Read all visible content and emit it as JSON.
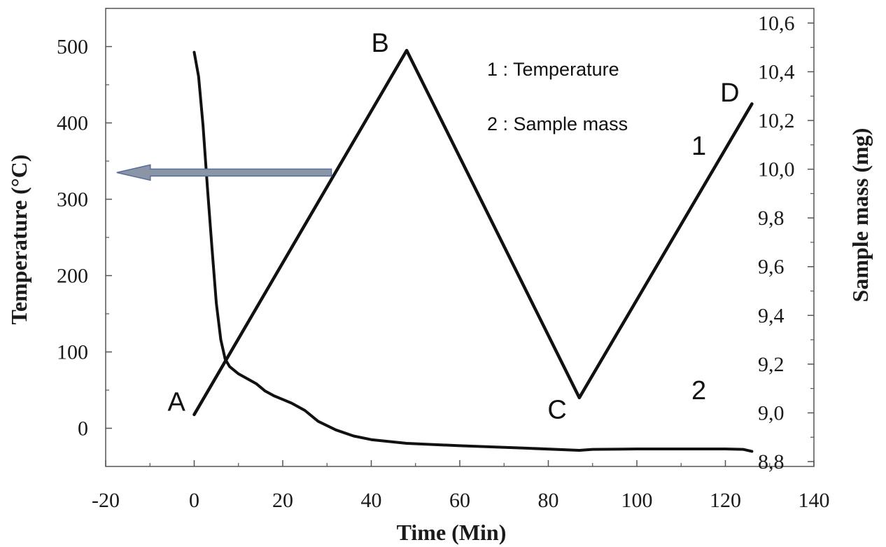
{
  "chart_data": {
    "type": "line",
    "xlabel": "Time (Min)",
    "ylabel_left": "Temperature  (°C)",
    "ylabel_right": "Sample mass (mg)",
    "xlim": [
      -20,
      140
    ],
    "ylim_left": [
      -50,
      550
    ],
    "ylim_right": [
      8.78,
      10.66
    ],
    "x_ticks": [
      "-20",
      "0",
      "20",
      "40",
      "60",
      "80",
      "100",
      "120",
      "140"
    ],
    "x_tick_values": [
      -20,
      0,
      20,
      40,
      60,
      80,
      100,
      120,
      140
    ],
    "y_left_ticks": [
      "0",
      "100",
      "200",
      "300",
      "400",
      "500"
    ],
    "y_left_tick_values": [
      0,
      100,
      200,
      300,
      400,
      500
    ],
    "y_right_ticks": [
      "8,8",
      "9,0",
      "9,2",
      "9,4",
      "9,6",
      "9,8",
      "10,0",
      "10,2",
      "10,4",
      "10,6"
    ],
    "y_right_tick_values": [
      8.8,
      9.0,
      9.2,
      9.4,
      9.6,
      9.8,
      10.0,
      10.2,
      10.4,
      10.6
    ],
    "legend": [
      "1 : Temperature",
      "2 : Sample mass"
    ],
    "series": [
      {
        "label": "1",
        "axis": "left",
        "x": [
          0,
          48,
          87,
          126
        ],
        "y": [
          18,
          495,
          40,
          425
        ]
      },
      {
        "label": "2",
        "axis": "right",
        "x": [
          0,
          1,
          2,
          3,
          4,
          5,
          6,
          7,
          8,
          9,
          10,
          12,
          14,
          16,
          18,
          20,
          22,
          25,
          28,
          32,
          36,
          40,
          48,
          60,
          75,
          87,
          90,
          100,
          110,
          120,
          124,
          126
        ],
        "y": [
          10.48,
          10.38,
          10.18,
          9.92,
          9.68,
          9.45,
          9.3,
          9.22,
          9.19,
          9.175,
          9.16,
          9.14,
          9.12,
          9.09,
          9.07,
          9.055,
          9.04,
          9.01,
          8.965,
          8.93,
          8.905,
          8.89,
          8.875,
          8.865,
          8.855,
          8.846,
          8.85,
          8.852,
          8.852,
          8.852,
          8.85,
          8.842
        ]
      }
    ],
    "annotations": [
      {
        "text": "A",
        "x": -4,
        "y": 35
      },
      {
        "text": "B",
        "x": 42,
        "y": 505
      },
      {
        "text": "C",
        "x": 82,
        "y": 25
      },
      {
        "text": "D",
        "x": 121,
        "y": 440
      },
      {
        "text": "1",
        "x": 114,
        "y": 370
      },
      {
        "text": "2",
        "x": 114,
        "y": 50
      }
    ],
    "arrow": {
      "from_x": 31,
      "to_x": -17.5,
      "y": 335,
      "color": "#8a95a8"
    },
    "grid": false,
    "legend_position": "top-right"
  }
}
